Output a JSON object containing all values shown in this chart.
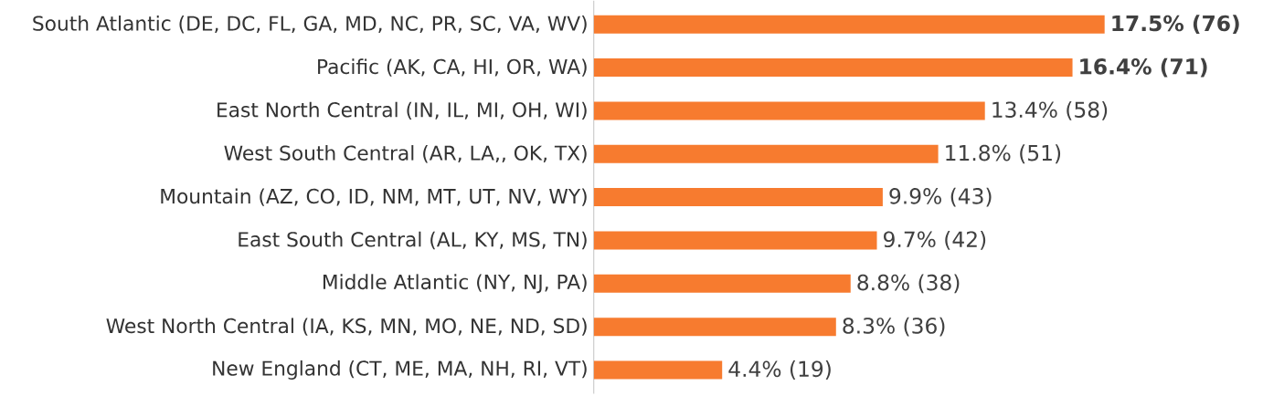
{
  "chart_data": {
    "type": "bar",
    "orientation": "horizontal",
    "categories": [
      "South Atlantic (DE, DC, FL, GA, MD, NC, PR, SC, VA, WV)",
      "Pacific (AK, CA, HI, OR, WA)",
      "East North Central (IN, IL, MI, OH, WI)",
      "West South Central (AR, LA,, OK, TX)",
      "Mountain (AZ, CO, ID, NM, MT, UT, NV, WY)",
      "East South Central (AL, KY, MS, TN)",
      "Middle Atlantic (NY, NJ, PA)",
      "West North Central (IA, KS, MN, MO, NE, ND, SD)",
      "New England (CT, ME, MA, NH, RI, VT)"
    ],
    "values": [
      17.5,
      16.4,
      13.4,
      11.8,
      9.9,
      9.7,
      8.8,
      8.3,
      4.4
    ],
    "value_labels": [
      "**17.5% (76)**",
      "**16.4% (71)**",
      "13.4% (58)",
      "11.8% (51)",
      "9.9% (43)",
      "9.7% (42)",
      "8.8% (38)",
      "8.3% (36)",
      "4.4% (19)"
    ],
    "color": "#f77b2f",
    "tick_labels": "y"
  }
}
